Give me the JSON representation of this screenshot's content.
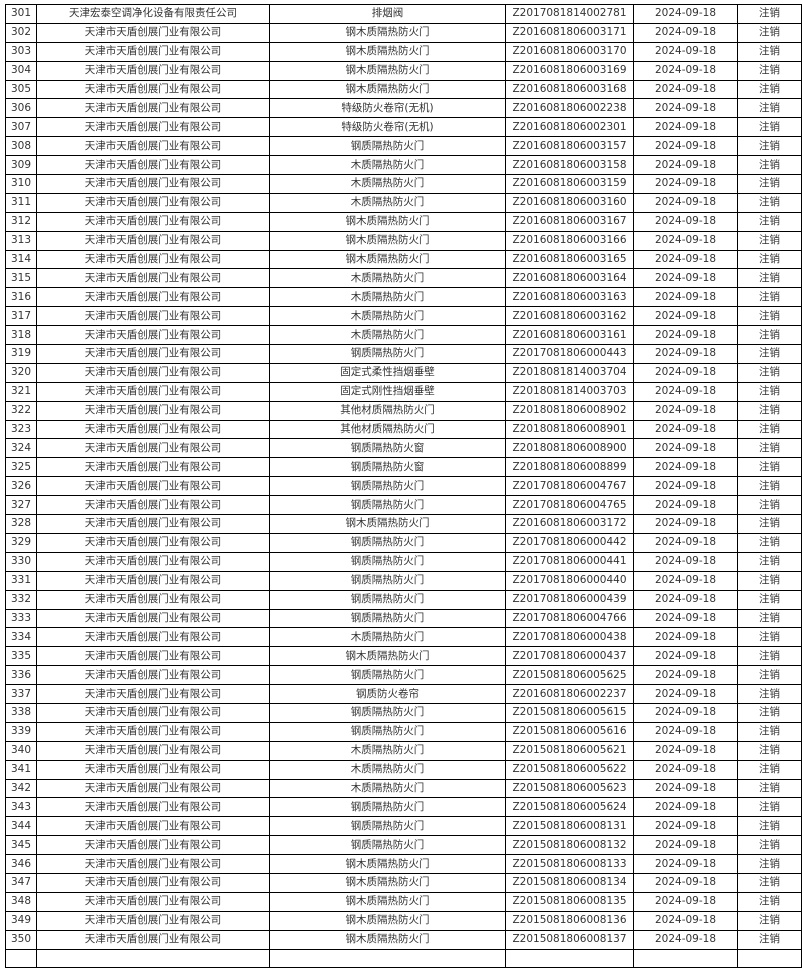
{
  "table": {
    "rows": [
      [
        "301",
        "天津宏泰空调净化设备有限责任公司",
        "排烟阀",
        "Z2017081814002781",
        "2024-09-18",
        "注销"
      ],
      [
        "302",
        "天津市天盾创展门业有限公司",
        "钢木质隔热防火门",
        "Z2016081806003171",
        "2024-09-18",
        "注销"
      ],
      [
        "303",
        "天津市天盾创展门业有限公司",
        "钢木质隔热防火门",
        "Z2016081806003170",
        "2024-09-18",
        "注销"
      ],
      [
        "304",
        "天津市天盾创展门业有限公司",
        "钢木质隔热防火门",
        "Z2016081806003169",
        "2024-09-18",
        "注销"
      ],
      [
        "305",
        "天津市天盾创展门业有限公司",
        "钢木质隔热防火门",
        "Z2016081806003168",
        "2024-09-18",
        "注销"
      ],
      [
        "306",
        "天津市天盾创展门业有限公司",
        "特级防火卷帘(无机)",
        "Z2016081806002238",
        "2024-09-18",
        "注销"
      ],
      [
        "307",
        "天津市天盾创展门业有限公司",
        "特级防火卷帘(无机)",
        "Z2016081806002301",
        "2024-09-18",
        "注销"
      ],
      [
        "308",
        "天津市天盾创展门业有限公司",
        "钢质隔热防火门",
        "Z2016081806003157",
        "2024-09-18",
        "注销"
      ],
      [
        "309",
        "天津市天盾创展门业有限公司",
        "木质隔热防火门",
        "Z2016081806003158",
        "2024-09-18",
        "注销"
      ],
      [
        "310",
        "天津市天盾创展门业有限公司",
        "木质隔热防火门",
        "Z2016081806003159",
        "2024-09-18",
        "注销"
      ],
      [
        "311",
        "天津市天盾创展门业有限公司",
        "木质隔热防火门",
        "Z2016081806003160",
        "2024-09-18",
        "注销"
      ],
      [
        "312",
        "天津市天盾创展门业有限公司",
        "钢木质隔热防火门",
        "Z2016081806003167",
        "2024-09-18",
        "注销"
      ],
      [
        "313",
        "天津市天盾创展门业有限公司",
        "钢木质隔热防火门",
        "Z2016081806003166",
        "2024-09-18",
        "注销"
      ],
      [
        "314",
        "天津市天盾创展门业有限公司",
        "钢木质隔热防火门",
        "Z2016081806003165",
        "2024-09-18",
        "注销"
      ],
      [
        "315",
        "天津市天盾创展门业有限公司",
        "木质隔热防火门",
        "Z2016081806003164",
        "2024-09-18",
        "注销"
      ],
      [
        "316",
        "天津市天盾创展门业有限公司",
        "木质隔热防火门",
        "Z2016081806003163",
        "2024-09-18",
        "注销"
      ],
      [
        "317",
        "天津市天盾创展门业有限公司",
        "木质隔热防火门",
        "Z2016081806003162",
        "2024-09-18",
        "注销"
      ],
      [
        "318",
        "天津市天盾创展门业有限公司",
        "木质隔热防火门",
        "Z2016081806003161",
        "2024-09-18",
        "注销"
      ],
      [
        "319",
        "天津市天盾创展门业有限公司",
        "钢质隔热防火门",
        "Z2017081806000443",
        "2024-09-18",
        "注销"
      ],
      [
        "320",
        "天津市天盾创展门业有限公司",
        "固定式柔性挡烟垂壁",
        "Z2018081814003704",
        "2024-09-18",
        "注销"
      ],
      [
        "321",
        "天津市天盾创展门业有限公司",
        "固定式刚性挡烟垂壁",
        "Z2018081814003703",
        "2024-09-18",
        "注销"
      ],
      [
        "322",
        "天津市天盾创展门业有限公司",
        "其他材质隔热防火门",
        "Z2018081806008902",
        "2024-09-18",
        "注销"
      ],
      [
        "323",
        "天津市天盾创展门业有限公司",
        "其他材质隔热防火门",
        "Z2018081806008901",
        "2024-09-18",
        "注销"
      ],
      [
        "324",
        "天津市天盾创展门业有限公司",
        "钢质隔热防火窗",
        "Z2018081806008900",
        "2024-09-18",
        "注销"
      ],
      [
        "325",
        "天津市天盾创展门业有限公司",
        "钢质隔热防火窗",
        "Z2018081806008899",
        "2024-09-18",
        "注销"
      ],
      [
        "326",
        "天津市天盾创展门业有限公司",
        "钢质隔热防火门",
        "Z2017081806004767",
        "2024-09-18",
        "注销"
      ],
      [
        "327",
        "天津市天盾创展门业有限公司",
        "钢质隔热防火门",
        "Z2017081806004765",
        "2024-09-18",
        "注销"
      ],
      [
        "328",
        "天津市天盾创展门业有限公司",
        "钢木质隔热防火门",
        "Z2016081806003172",
        "2024-09-18",
        "注销"
      ],
      [
        "329",
        "天津市天盾创展门业有限公司",
        "钢质隔热防火门",
        "Z2017081806000442",
        "2024-09-18",
        "注销"
      ],
      [
        "330",
        "天津市天盾创展门业有限公司",
        "钢质隔热防火门",
        "Z2017081806000441",
        "2024-09-18",
        "注销"
      ],
      [
        "331",
        "天津市天盾创展门业有限公司",
        "钢质隔热防火门",
        "Z2017081806000440",
        "2024-09-18",
        "注销"
      ],
      [
        "332",
        "天津市天盾创展门业有限公司",
        "钢质隔热防火门",
        "Z2017081806000439",
        "2024-09-18",
        "注销"
      ],
      [
        "333",
        "天津市天盾创展门业有限公司",
        "钢质隔热防火门",
        "Z2017081806004766",
        "2024-09-18",
        "注销"
      ],
      [
        "334",
        "天津市天盾创展门业有限公司",
        "木质隔热防火门",
        "Z2017081806000438",
        "2024-09-18",
        "注销"
      ],
      [
        "335",
        "天津市天盾创展门业有限公司",
        "钢木质隔热防火门",
        "Z2017081806000437",
        "2024-09-18",
        "注销"
      ],
      [
        "336",
        "天津市天盾创展门业有限公司",
        "钢质隔热防火门",
        "Z2015081806005625",
        "2024-09-18",
        "注销"
      ],
      [
        "337",
        "天津市天盾创展门业有限公司",
        "钢质防火卷帘",
        "Z2016081806002237",
        "2024-09-18",
        "注销"
      ],
      [
        "338",
        "天津市天盾创展门业有限公司",
        "钢质隔热防火门",
        "Z2015081806005615",
        "2024-09-18",
        "注销"
      ],
      [
        "339",
        "天津市天盾创展门业有限公司",
        "钢质隔热防火门",
        "Z2015081806005616",
        "2024-09-18",
        "注销"
      ],
      [
        "340",
        "天津市天盾创展门业有限公司",
        "木质隔热防火门",
        "Z2015081806005621",
        "2024-09-18",
        "注销"
      ],
      [
        "341",
        "天津市天盾创展门业有限公司",
        "木质隔热防火门",
        "Z2015081806005622",
        "2024-09-18",
        "注销"
      ],
      [
        "342",
        "天津市天盾创展门业有限公司",
        "木质隔热防火门",
        "Z2015081806005623",
        "2024-09-18",
        "注销"
      ],
      [
        "343",
        "天津市天盾创展门业有限公司",
        "钢质隔热防火门",
        "Z2015081806005624",
        "2024-09-18",
        "注销"
      ],
      [
        "344",
        "天津市天盾创展门业有限公司",
        "钢质隔热防火门",
        "Z2015081806008131",
        "2024-09-18",
        "注销"
      ],
      [
        "345",
        "天津市天盾创展门业有限公司",
        "钢质隔热防火门",
        "Z2015081806008132",
        "2024-09-18",
        "注销"
      ],
      [
        "346",
        "天津市天盾创展门业有限公司",
        "钢木质隔热防火门",
        "Z2015081806008133",
        "2024-09-18",
        "注销"
      ],
      [
        "347",
        "天津市天盾创展门业有限公司",
        "钢木质隔热防火门",
        "Z2015081806008134",
        "2024-09-18",
        "注销"
      ],
      [
        "348",
        "天津市天盾创展门业有限公司",
        "钢木质隔热防火门",
        "Z2015081806008135",
        "2024-09-18",
        "注销"
      ],
      [
        "349",
        "天津市天盾创展门业有限公司",
        "钢木质隔热防火门",
        "Z2015081806008136",
        "2024-09-18",
        "注销"
      ],
      [
        "350",
        "天津市天盾创展门业有限公司",
        "钢木质隔热防火门",
        "Z2015081806008137",
        "2024-09-18",
        "注销"
      ]
    ]
  }
}
